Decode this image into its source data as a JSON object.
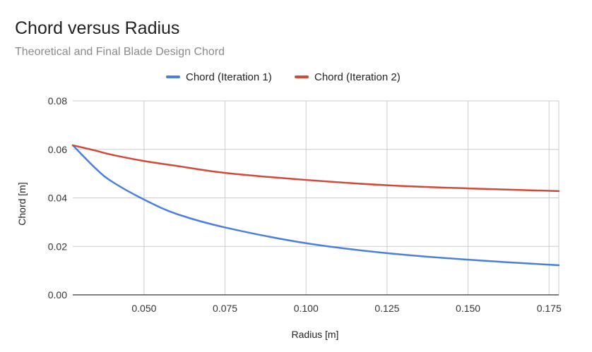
{
  "chart_data": {
    "type": "line",
    "title": "Chord versus Radius",
    "subtitle": "Theoretical and Final Blade Design Chord",
    "xlabel": "Radius [m]",
    "ylabel": "Chord [m]",
    "xlim": [
      0.028,
      0.178
    ],
    "ylim": [
      0,
      0.08
    ],
    "xticks": [
      0.05,
      0.075,
      0.1,
      0.125,
      0.15,
      0.175
    ],
    "xtick_labels": [
      "0.050",
      "0.075",
      "0.100",
      "0.125",
      "0.150",
      "0.175"
    ],
    "yticks": [
      0,
      0.02,
      0.04,
      0.06,
      0.08
    ],
    "ytick_labels": [
      "0.00",
      "0.02",
      "0.04",
      "0.06",
      "0.08"
    ],
    "grid": true,
    "legend_position": "top",
    "series": [
      {
        "name": "Chord (Iteration 1)",
        "color": "#4a7fdc",
        "x": [
          0.028,
          0.035,
          0.04,
          0.05,
          0.06,
          0.075,
          0.1,
          0.125,
          0.15,
          0.178
        ],
        "y": [
          0.0617,
          0.0522,
          0.0468,
          0.0393,
          0.0334,
          0.0278,
          0.0213,
          0.0172,
          0.0145,
          0.0122
        ]
      },
      {
        "name": "Chord (Iteration 2)",
        "color": "#d04a3a",
        "x": [
          0.028,
          0.035,
          0.04,
          0.05,
          0.06,
          0.075,
          0.1,
          0.125,
          0.15,
          0.178
        ],
        "y": [
          0.0617,
          0.0595,
          0.0578,
          0.0552,
          0.0532,
          0.0503,
          0.0474,
          0.0452,
          0.0439,
          0.0428
        ]
      }
    ]
  }
}
